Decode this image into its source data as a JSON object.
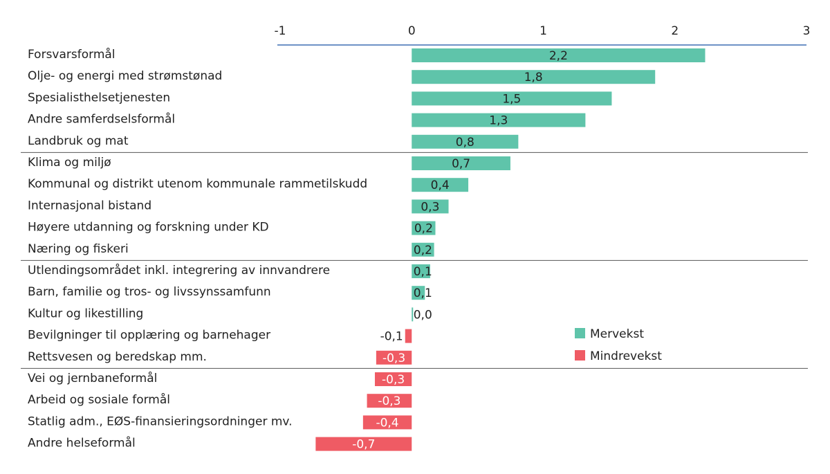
{
  "chart_data": {
    "type": "bar",
    "orientation": "horizontal",
    "xlim": [
      -1,
      3
    ],
    "x_ticks": [
      "-1",
      "0",
      "1",
      "2",
      "3"
    ],
    "grid": false,
    "legend_position": "right",
    "colors": {
      "positive": "#5fc4aa",
      "negative": "#ef5b64",
      "axis": "#3d6eb4",
      "separator": "#555555",
      "text": "#222222"
    },
    "legend": [
      {
        "label": "Mervekst",
        "color": "#5fc4aa"
      },
      {
        "label": "Mindrevekst",
        "color": "#ef5b64"
      }
    ],
    "group_separators_after_index": [
      4,
      9,
      14
    ],
    "categories": [
      "Forsvarsformål",
      "Olje- og energi med strømstønad",
      "Spesialisthelsetjenesten",
      "Andre samferdselsformål",
      "Landbruk og mat",
      "Klima og miljø",
      "Kommunal og distrikt utenom kommunale rammetilskudd",
      "Internasjonal bistand",
      "Høyere utdanning og forskning under KD",
      "Næring og fiskeri",
      "Utlendingsområdet inkl. integrering av innvandrere",
      "Barn, familie og tros- og livssynssamfunn",
      "Kultur og likestilling",
      "Bevilgninger til opplæring og barnehager",
      "Rettsvesen og beredskap mm.",
      "Vei og jernbaneformål",
      "Arbeid og sosiale formål",
      "Statlig adm., EØS-finansieringsordninger mv.",
      "Andre helseformål"
    ],
    "values": [
      2.23,
      1.85,
      1.52,
      1.32,
      0.81,
      0.75,
      0.43,
      0.28,
      0.18,
      0.17,
      0.14,
      0.1,
      0.01,
      -0.05,
      -0.27,
      -0.28,
      -0.34,
      -0.37,
      -0.73
    ],
    "data_labels": [
      "2,2",
      "1,8",
      "1,5",
      "1,3",
      "0,8",
      "0,7",
      "0,4",
      "0,3",
      "0,2",
      "0,2",
      "0,1",
      "0,1",
      "0,0",
      "-0,1",
      "-0,3",
      "-0,3",
      "-0,3",
      "-0,4",
      "-0,7"
    ]
  }
}
